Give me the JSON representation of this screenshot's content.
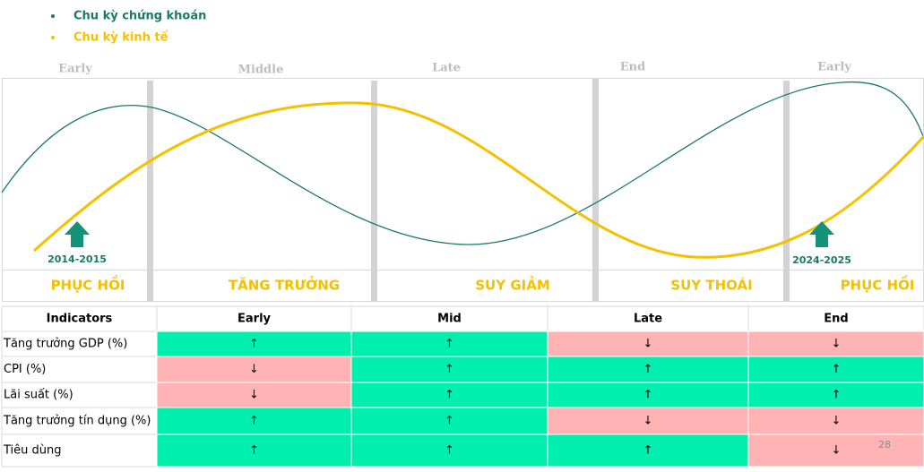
{
  "legend": [
    "Chu kỳ chứng khoán",
    "Chu kỳ kinh tế"
  ],
  "phase_labels": [
    "Early",
    "Middle",
    "Late",
    "End",
    "Early"
  ],
  "stage_labels": [
    "PHỤC HỒI",
    "TĂNG TRƯỞNG",
    "SUY GIẢM",
    "SUY THOÁI",
    "PHỤC HỒI"
  ],
  "markers": [
    "2014-2015",
    "2024-2025"
  ],
  "table": {
    "header": [
      "Indicators",
      "Early",
      "Mid",
      "Late",
      "End"
    ],
    "rows": [
      {
        "label": "Tăng trưởng GDP (%)",
        "cells": [
          {
            "text": "↑",
            "color": "#00efae"
          },
          {
            "text": "↑",
            "color": "#00efae"
          },
          {
            "text": "↓",
            "color": "#ffb3b5"
          },
          {
            "text": "↓",
            "color": "#ffb3b5"
          }
        ]
      },
      {
        "label": "CPI (%)",
        "cells": [
          {
            "text": "↓",
            "color": "#ffb3b5"
          },
          {
            "text": "↑",
            "color": "#00efae"
          },
          {
            "text": "↑",
            "color": "#00efae"
          },
          {
            "text": "↑",
            "color": "#00efae"
          }
        ]
      },
      {
        "label": "Lãi suất (%)",
        "cells": [
          {
            "text": "↓",
            "color": "#ffb3b5"
          },
          {
            "text": "↑",
            "color": "#00efae"
          },
          {
            "text": "↑",
            "color": "#00efae"
          },
          {
            "text": "↑",
            "color": "#00efae"
          }
        ]
      },
      {
        "label": "Tăng trưởng tín dụng (%)",
        "cells": [
          {
            "text": "↑",
            "color": "#00efae"
          },
          {
            "text": "↑",
            "color": "#00efae"
          },
          {
            "text": "↓",
            "color": "#ffb3b5"
          },
          {
            "text": "↓",
            "color": "#ffb3b5"
          }
        ]
      },
      {
        "label": "Tiêu dùng",
        "cells": [
          {
            "text": "↑",
            "color": "#00efae"
          },
          {
            "text": "↑",
            "color": "#00efae"
          },
          {
            "text": "↑",
            "color": "#00efae"
          },
          {
            "text": "↓",
            "color": "#ffb3b5"
          }
        ]
      }
    ]
  },
  "page_number": "28"
}
